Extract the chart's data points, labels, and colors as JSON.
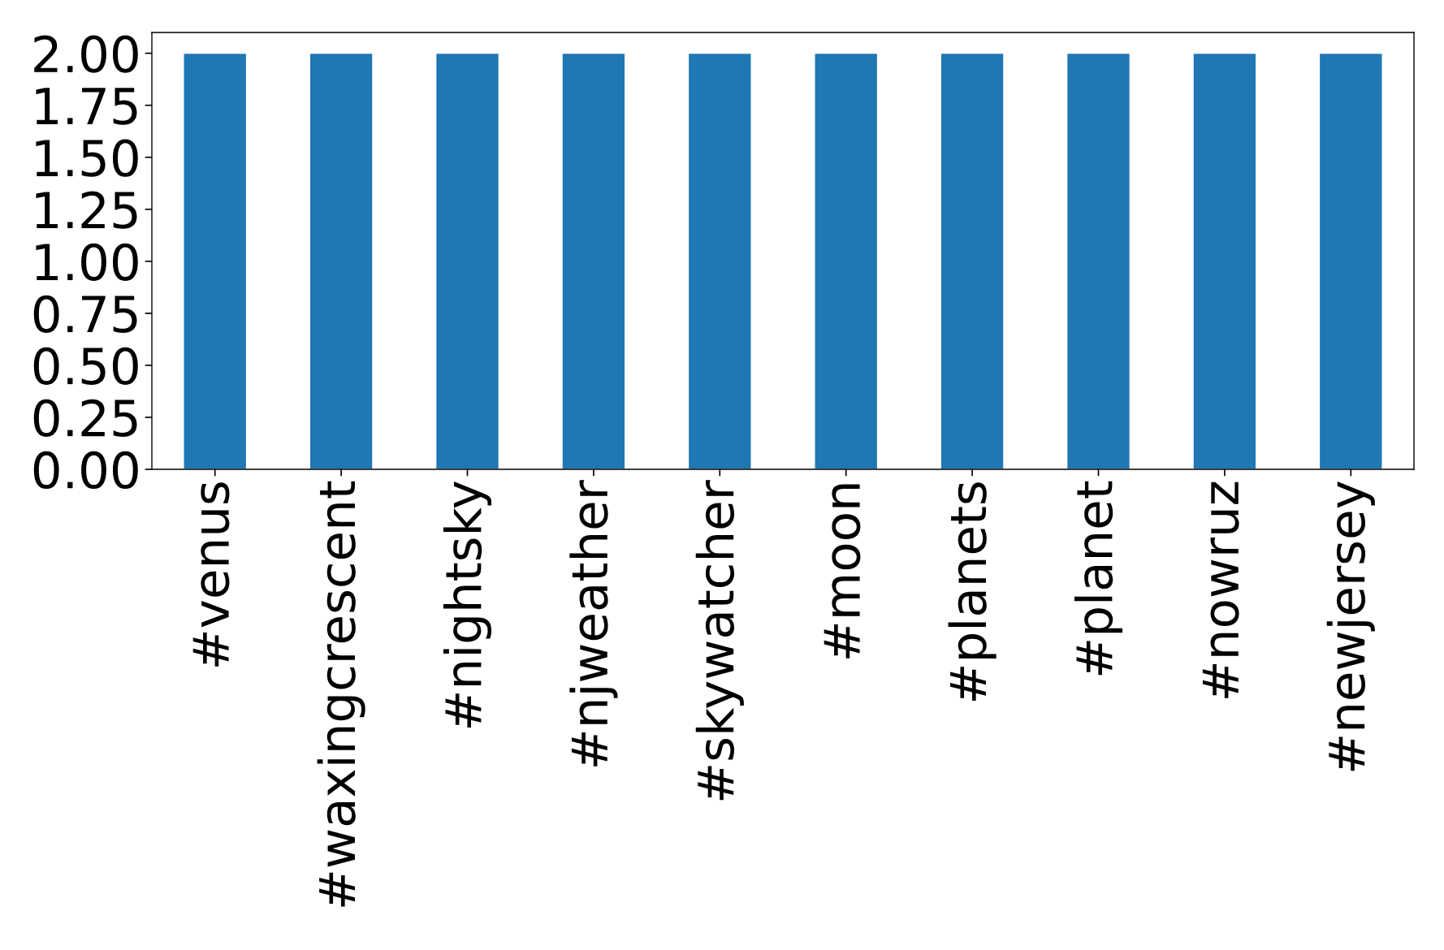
{
  "chart_data": {
    "type": "bar",
    "categories": [
      "#venus",
      "#waxingcrescent",
      "#nightsky",
      "#njweather",
      "#skywatcher",
      "#moon",
      "#planets",
      "#planet",
      "#nowruz",
      "#newjersey"
    ],
    "values": [
      2,
      2,
      2,
      2,
      2,
      2,
      2,
      2,
      2,
      2
    ],
    "color": "#1f77b4",
    "ylim": [
      0,
      2.1
    ],
    "yticks": [
      {
        "value": 0,
        "label": "0.00"
      },
      {
        "value": 0.25,
        "label": "0.25"
      },
      {
        "value": 0.5,
        "label": "0.50"
      },
      {
        "value": 0.75,
        "label": "0.75"
      },
      {
        "value": 1,
        "label": "1.00"
      },
      {
        "value": 1.25,
        "label": "1.25"
      },
      {
        "value": 1.5,
        "label": "1.50"
      },
      {
        "value": 1.75,
        "label": "1.75"
      },
      {
        "value": 2,
        "label": "2.00"
      }
    ],
    "grid": false
  }
}
